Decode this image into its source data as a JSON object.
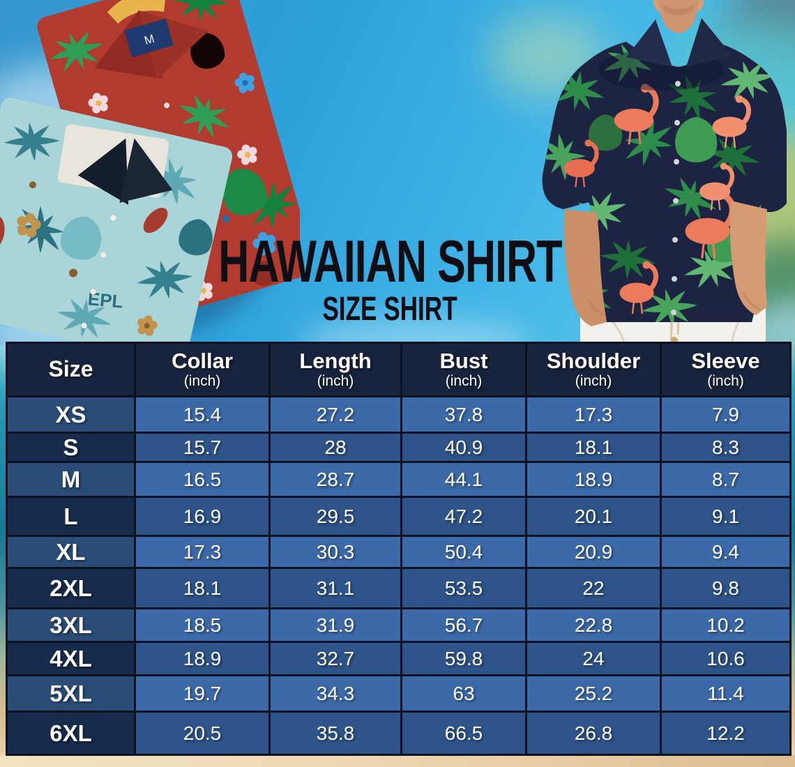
{
  "title": {
    "line1": "HAWAIIAN SHIRT",
    "line2": "SIZE SHIRT"
  },
  "chart_data": {
    "type": "table",
    "title": "Hawaiian Shirt Size Chart",
    "headers": [
      {
        "label": "Size",
        "unit": ""
      },
      {
        "label": "Collar",
        "unit": "(inch)"
      },
      {
        "label": "Length",
        "unit": "(inch)"
      },
      {
        "label": "Bust",
        "unit": "(inch)"
      },
      {
        "label": "Shoulder",
        "unit": "(inch)"
      },
      {
        "label": "Sleeve",
        "unit": "(inch)"
      }
    ],
    "rows": [
      {
        "size": "XS",
        "values": [
          "15.4",
          "27.2",
          "37.8",
          "17.3",
          "7.9"
        ]
      },
      {
        "size": "S",
        "values": [
          "15.7",
          "28",
          "40.9",
          "18.1",
          "8.3"
        ]
      },
      {
        "size": "M",
        "values": [
          "16.5",
          "28.7",
          "44.1",
          "18.9",
          "8.7"
        ]
      },
      {
        "size": "L",
        "values": [
          "16.9",
          "29.5",
          "47.2",
          "20.1",
          "9.1"
        ]
      },
      {
        "size": "XL",
        "values": [
          "17.3",
          "30.3",
          "50.4",
          "20.9",
          "9.4"
        ]
      },
      {
        "size": "2XL",
        "values": [
          "18.1",
          "31.1",
          "53.5",
          "22",
          "9.8"
        ]
      },
      {
        "size": "3XL",
        "values": [
          "18.5",
          "31.9",
          "56.7",
          "22.8",
          "10.2"
        ]
      },
      {
        "size": "4XL",
        "values": [
          "18.9",
          "32.7",
          "59.8",
          "24",
          "10.6"
        ]
      },
      {
        "size": "5XL",
        "values": [
          "19.7",
          "34.3",
          "63",
          "25.2",
          "11.4"
        ]
      },
      {
        "size": "6XL",
        "values": [
          "20.5",
          "35.8",
          "66.5",
          "26.8",
          "12.2"
        ]
      }
    ]
  },
  "photos": {
    "left": "folded-red-and-teal-hawaiian-shirts-photo",
    "right": "man-wearing-navy-flamingo-hawaiian-shirt-photo",
    "red_shirt_tag_label": "M",
    "teal_shirt_print_text": "EPL"
  },
  "colors": {
    "header_bg": "#18243d",
    "row_light": "#3c69a7",
    "row_dark": "#2e5489",
    "size_col_light": "#2b4c77",
    "size_col_dark": "#172b4c",
    "border_color": "#0a1120",
    "title_color": "#0e0e14",
    "sky_blue": "#2da3de",
    "sand": "#eed7b2"
  }
}
